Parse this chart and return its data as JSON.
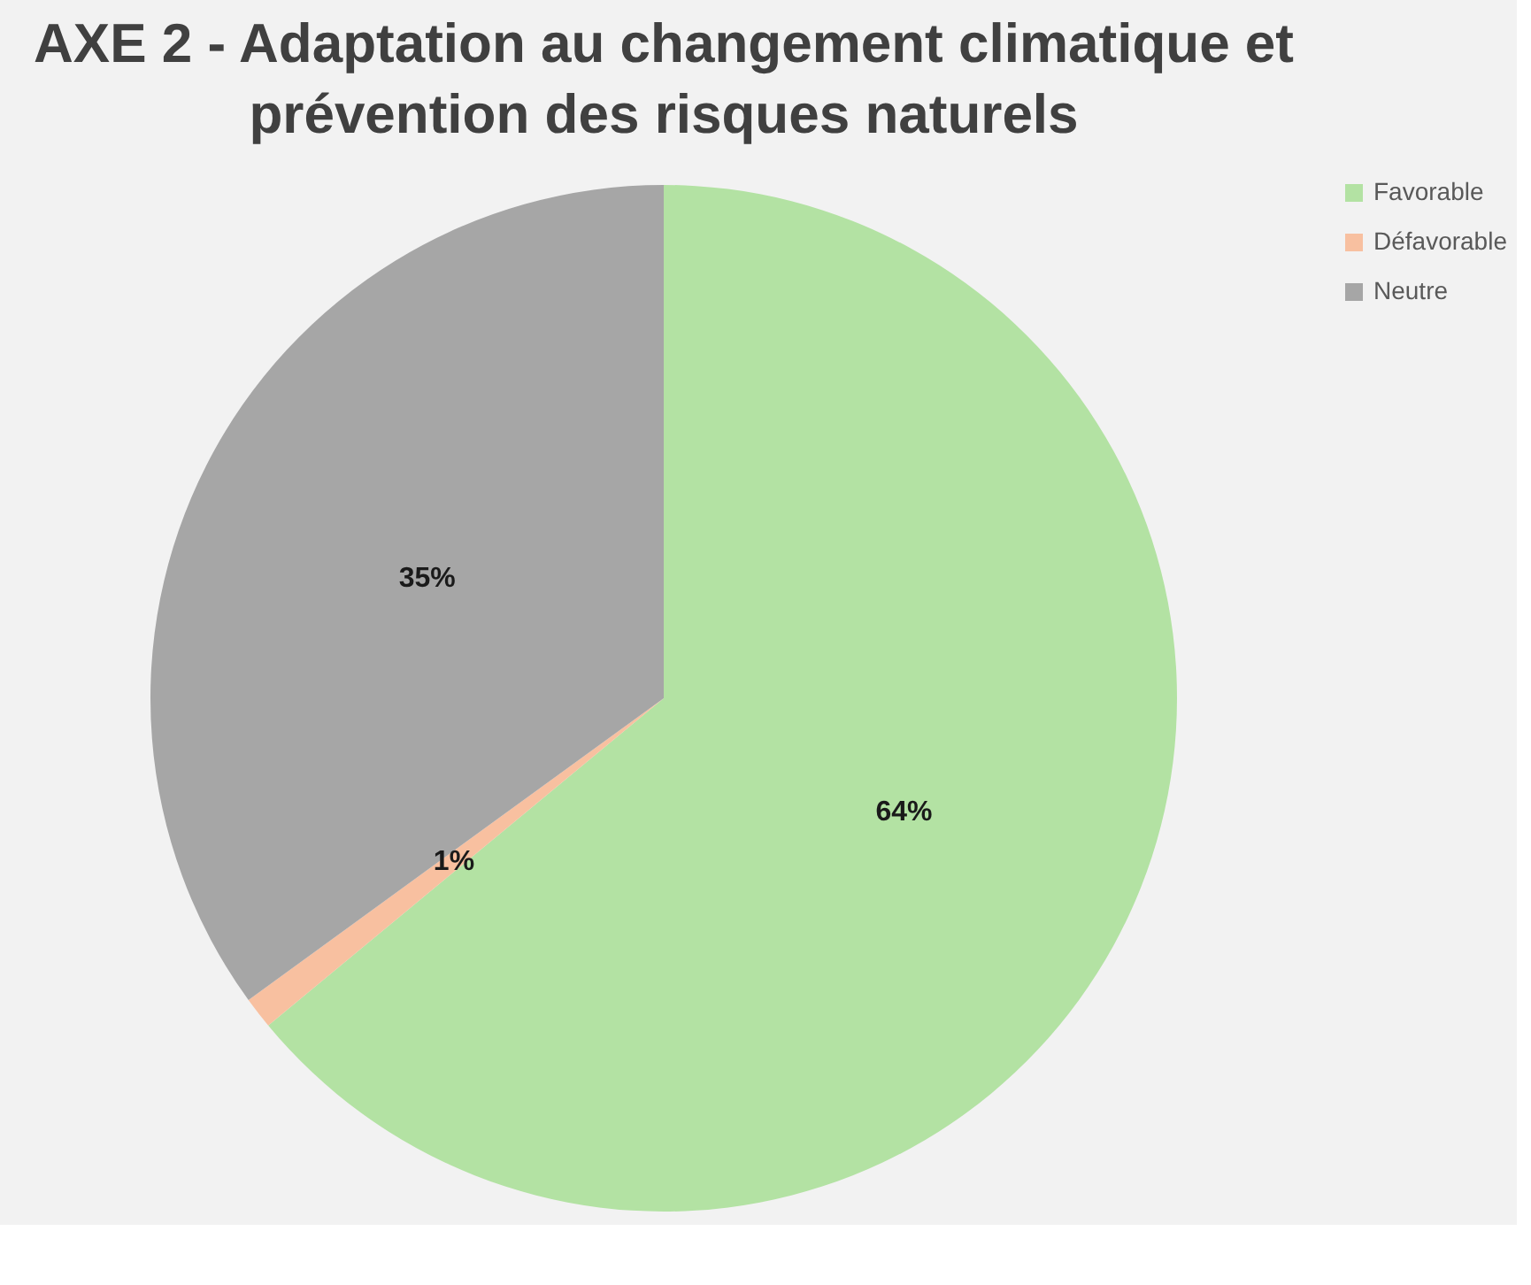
{
  "chart_data": {
    "type": "pie",
    "title": [
      "AXE 2 - Adaptation au changement climatique et",
      "prévention des risques naturels"
    ],
    "categories": [
      "Favorable",
      "Défavorable",
      "Neutre"
    ],
    "values": [
      64,
      1,
      35
    ],
    "colors": [
      "#b3e2a3",
      "#f8c0a0",
      "#a6a6a6"
    ],
    "value_labels": [
      "64%",
      "1%",
      "35%"
    ],
    "legend": "right"
  }
}
